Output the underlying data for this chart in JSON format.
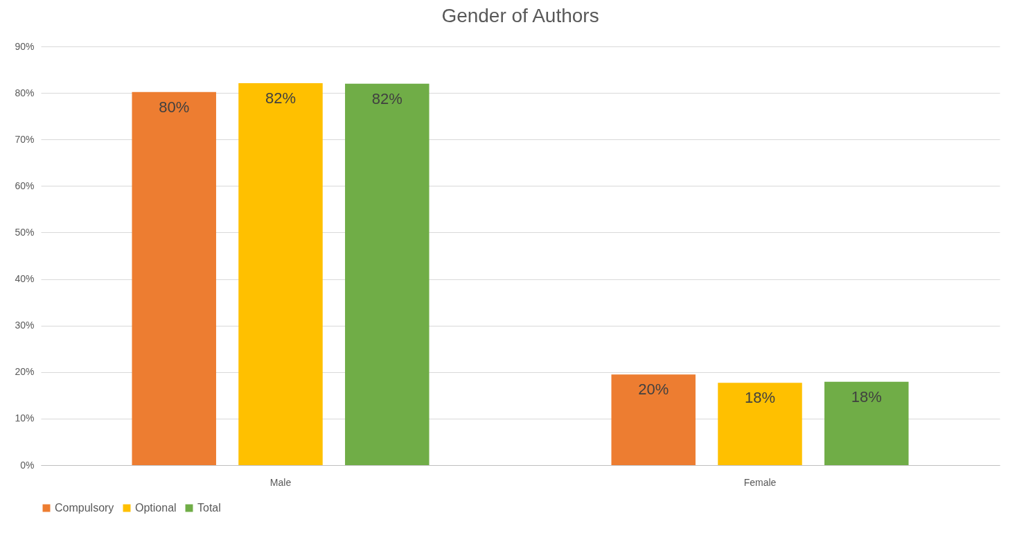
{
  "chart_data": {
    "type": "bar",
    "title": "Gender of Authors",
    "categories": [
      "Male",
      "Female"
    ],
    "series": [
      {
        "name": "Compulsory",
        "color": "#ed7d31",
        "values": [
          80.2,
          19.5
        ],
        "value_labels": [
          "80%",
          "20%"
        ]
      },
      {
        "name": "Optional",
        "color": "#ffc000",
        "values": [
          82.1,
          17.7
        ],
        "value_labels": [
          "82%",
          "18%"
        ]
      },
      {
        "name": "Total",
        "color": "#70ad47",
        "values": [
          82.0,
          17.9
        ],
        "value_labels": [
          "82%",
          "18%"
        ]
      }
    ],
    "ylim": [
      0,
      90
    ],
    "yticks": [
      {
        "value": 0,
        "label": "0%"
      },
      {
        "value": 10,
        "label": "10%"
      },
      {
        "value": 20,
        "label": "20%"
      },
      {
        "value": 30,
        "label": "30%"
      },
      {
        "value": 40,
        "label": "40%"
      },
      {
        "value": 50,
        "label": "50%"
      },
      {
        "value": 60,
        "label": "60%"
      },
      {
        "value": 70,
        "label": "70%"
      },
      {
        "value": 80,
        "label": "80%"
      },
      {
        "value": 90,
        "label": "90%"
      }
    ],
    "grid": "y",
    "legend": "bottom"
  }
}
